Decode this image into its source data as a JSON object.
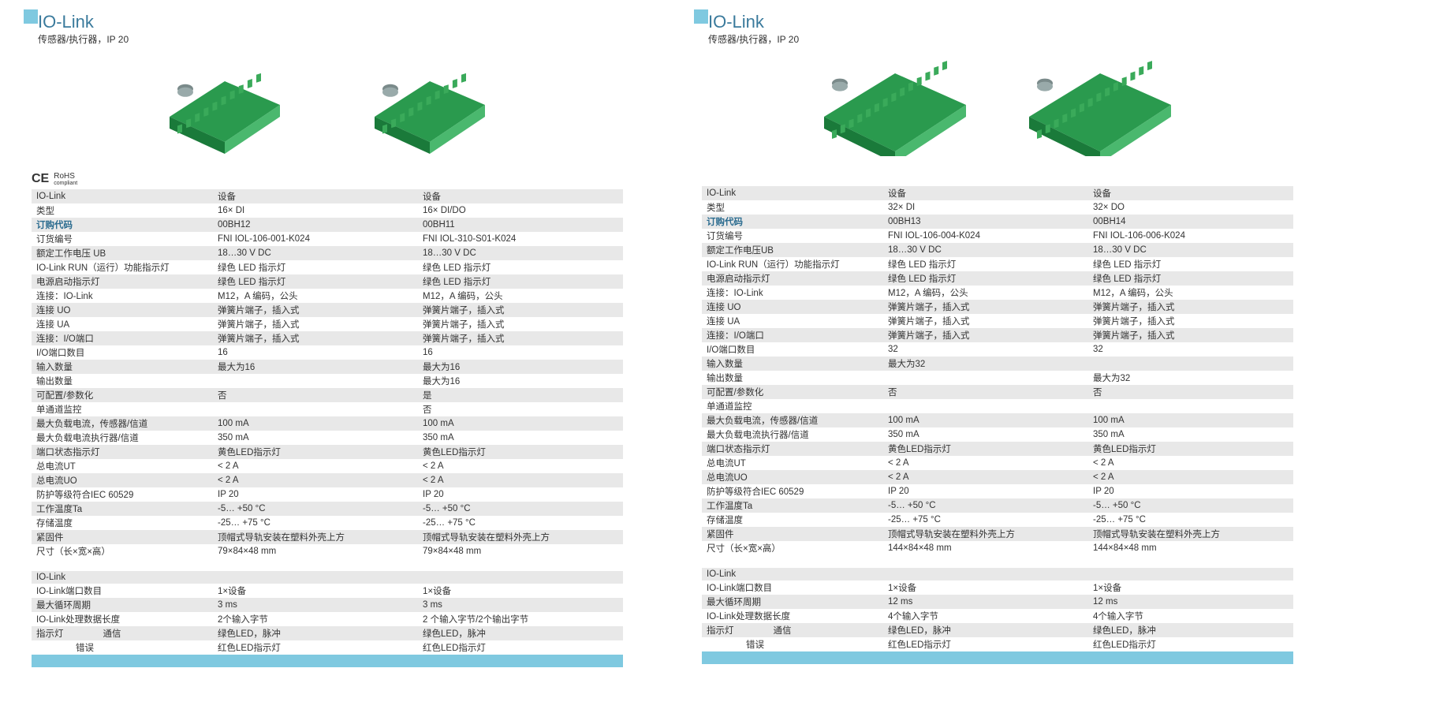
{
  "panels": [
    {
      "title": "IO-Link",
      "subtitle": "传感器/执行器，IP 20",
      "show_cert": true,
      "images": [
        "a",
        "b"
      ],
      "col_headers": [
        "设备",
        "设备"
      ],
      "rows": [
        {
          "label": "IO-Link",
          "c1": "设备",
          "c2": "设备",
          "cls": "row-grey",
          "header": true
        },
        {
          "label": "类型",
          "c1": "16× DI",
          "c2": "16× DI/DO",
          "cls": "row-white"
        },
        {
          "label": "订购代码",
          "c1": "00BH12",
          "c2": "00BH11",
          "cls": "row-grey row-ordercode"
        },
        {
          "label": "订货编号",
          "c1": "FNI IOL-106-001-K024",
          "c2": "FNI IOL-310-S01-K024",
          "cls": "row-white"
        },
        {
          "label": "额定工作电压 UB",
          "c1": "18…30 V DC",
          "c2": "18…30 V DC",
          "cls": "row-grey"
        },
        {
          "label": "IO-Link RUN（运行）功能指示灯",
          "c1": "绿色 LED 指示灯",
          "c2": "绿色 LED 指示灯",
          "cls": "row-white"
        },
        {
          "label": "电源启动指示灯",
          "c1": "绿色 LED 指示灯",
          "c2": "绿色 LED 指示灯",
          "cls": "row-grey"
        },
        {
          "label": "连接：IO-Link",
          "c1": "M12，A 编码，公头",
          "c2": "M12，A 编码，公头",
          "cls": "row-white"
        },
        {
          "label": "连接 UO",
          "c1": "弹簧片端子，插入式",
          "c2": "弹簧片端子，插入式",
          "cls": "row-grey"
        },
        {
          "label": "连接 UA",
          "c1": "弹簧片端子，插入式",
          "c2": "弹簧片端子，插入式",
          "cls": "row-white"
        },
        {
          "label": "连接：I/O端口",
          "c1": "弹簧片端子，插入式",
          "c2": "弹簧片端子，插入式",
          "cls": "row-grey"
        },
        {
          "label": "I/O端口数目",
          "c1": "16",
          "c2": "16",
          "cls": "row-white"
        },
        {
          "label": "输入数量",
          "c1": "最大为16",
          "c2": "最大为16",
          "cls": "row-grey"
        },
        {
          "label": "输出数量",
          "c1": "",
          "c2": "最大为16",
          "cls": "row-white"
        },
        {
          "label": "可配置/参数化",
          "c1": "否",
          "c2": "是",
          "cls": "row-grey"
        },
        {
          "label": "单通道监控",
          "c1": "",
          "c2": "否",
          "cls": "row-white"
        },
        {
          "label": "最大负载电流，传感器/信道",
          "c1": "100 mA",
          "c2": "100 mA",
          "cls": "row-grey"
        },
        {
          "label": "最大负载电流执行器/信道",
          "c1": "350 mA",
          "c2": "350 mA",
          "cls": "row-white"
        },
        {
          "label": "端口状态指示灯",
          "c1": "黄色LED指示灯",
          "c2": "黄色LED指示灯",
          "cls": "row-grey"
        },
        {
          "label": "总电流UT",
          "c1": "< 2 A",
          "c2": "< 2 A",
          "cls": "row-white"
        },
        {
          "label": "总电流UO",
          "c1": "< 2 A",
          "c2": "< 2 A",
          "cls": "row-grey"
        },
        {
          "label": "防护等级符合IEC 60529",
          "c1": "IP 20",
          "c2": "IP 20",
          "cls": "row-white"
        },
        {
          "label": "工作温度Ta",
          "c1": "-5… +50 °C",
          "c2": "-5… +50 °C",
          "cls": "row-grey"
        },
        {
          "label": "存储温度",
          "c1": "-25… +75 °C",
          "c2": "-25… +75 °C",
          "cls": "row-white"
        },
        {
          "label": "紧固件",
          "c1": "顶帽式导轨安装在塑料外壳上方",
          "c2": "顶帽式导轨安装在塑料外壳上方",
          "cls": "row-grey"
        },
        {
          "label": "尺寸（长×宽×高）",
          "c1": "79×84×48 mm",
          "c2": "79×84×48 mm",
          "cls": "row-white"
        }
      ],
      "rows2": [
        {
          "label": "IO-Link",
          "c1": "",
          "c2": "",
          "cls": "row-grey"
        },
        {
          "label": "IO-Link端口数目",
          "c1": "1×设备",
          "c2": "1×设备",
          "cls": "row-white"
        },
        {
          "label": "最大循环周期",
          "c1": "3 ms",
          "c2": "3 ms",
          "cls": "row-grey"
        },
        {
          "label": "IO-Link处理数据长度",
          "c1": "2个输入字节",
          "c2": "2 个输入字节/2个输出字节",
          "cls": "row-white"
        },
        {
          "label": "指示灯",
          "sublabel": "通信",
          "c1": "绿色LED，脉冲",
          "c2": "绿色LED，脉冲",
          "cls": "row-grey",
          "indent": true
        },
        {
          "label": "",
          "sublabel": "错误",
          "c1": "红色LED指示灯",
          "c2": "红色LED指示灯",
          "cls": "row-white",
          "indent": true
        }
      ]
    },
    {
      "title": "IO-Link",
      "subtitle": "传感器/执行器，IP 20",
      "show_cert": false,
      "images": [
        "c",
        "d"
      ],
      "rows": [
        {
          "label": "IO-Link",
          "c1": "设备",
          "c2": "设备",
          "cls": "row-grey",
          "header": true
        },
        {
          "label": "类型",
          "c1": "32× DI",
          "c2": "32× DO",
          "cls": "row-white"
        },
        {
          "label": "订购代码",
          "c1": "00BH13",
          "c2": "00BH14",
          "cls": "row-grey row-ordercode"
        },
        {
          "label": "订货编号",
          "c1": "FNI IOL-106-004-K024",
          "c2": "FNI IOL-106-006-K024",
          "cls": "row-white"
        },
        {
          "label": "额定工作电压UB",
          "c1": "18…30 V DC",
          "c2": "18…30 V DC",
          "cls": "row-grey"
        },
        {
          "label": "IO-Link RUN（运行）功能指示灯",
          "c1": "绿色 LED 指示灯",
          "c2": "绿色 LED 指示灯",
          "cls": "row-white"
        },
        {
          "label": "电源启动指示灯",
          "c1": "绿色 LED 指示灯",
          "c2": "绿色 LED 指示灯",
          "cls": "row-grey"
        },
        {
          "label": "连接：IO-Link",
          "c1": "M12，A 编码，公头",
          "c2": "M12，A 编码，公头",
          "cls": "row-white"
        },
        {
          "label": "连接 UO",
          "c1": "弹簧片端子，插入式",
          "c2": "弹簧片端子，插入式",
          "cls": "row-grey"
        },
        {
          "label": "连接 UA",
          "c1": "弹簧片端子，插入式",
          "c2": "弹簧片端子，插入式",
          "cls": "row-white"
        },
        {
          "label": "连接：I/O端口",
          "c1": "弹簧片端子，插入式",
          "c2": "弹簧片端子，插入式",
          "cls": "row-grey"
        },
        {
          "label": "I/O端口数目",
          "c1": "32",
          "c2": "32",
          "cls": "row-white"
        },
        {
          "label": "输入数量",
          "c1": "最大为32",
          "c2": "",
          "cls": "row-grey"
        },
        {
          "label": "输出数量",
          "c1": "",
          "c2": "最大为32",
          "cls": "row-white"
        },
        {
          "label": "可配置/参数化",
          "c1": "否",
          "c2": "否",
          "cls": "row-grey"
        },
        {
          "label": "单通道监控",
          "c1": "",
          "c2": "",
          "cls": "row-white"
        },
        {
          "label": "最大负载电流，传感器/信道",
          "c1": "100 mA",
          "c2": "100 mA",
          "cls": "row-grey"
        },
        {
          "label": "最大负载电流执行器/信道",
          "c1": "350 mA",
          "c2": "350 mA",
          "cls": "row-white"
        },
        {
          "label": "端口状态指示灯",
          "c1": "黄色LED指示灯",
          "c2": "黄色LED指示灯",
          "cls": "row-grey"
        },
        {
          "label": "总电流UT",
          "c1": "< 2 A",
          "c2": "< 2 A",
          "cls": "row-white"
        },
        {
          "label": "总电流UO",
          "c1": "< 2 A",
          "c2": "< 2 A",
          "cls": "row-grey"
        },
        {
          "label": "防护等级符合IEC 60529",
          "c1": "IP 20",
          "c2": "IP 20",
          "cls": "row-white"
        },
        {
          "label": "工作温度Ta",
          "c1": "-5… +50 °C",
          "c2": "-5… +50 °C",
          "cls": "row-grey"
        },
        {
          "label": "存储温度",
          "c1": "-25… +75 °C",
          "c2": "-25… +75 °C",
          "cls": "row-white"
        },
        {
          "label": "紧固件",
          "c1": "顶帽式导轨安装在塑料外壳上方",
          "c2": "顶帽式导轨安装在塑料外壳上方",
          "cls": "row-grey"
        },
        {
          "label": "尺寸（长×宽×高）",
          "c1": "144×84×48 mm",
          "c2": "144×84×48 mm",
          "cls": "row-white"
        }
      ],
      "rows2": [
        {
          "label": "IO-Link",
          "c1": "",
          "c2": "",
          "cls": "row-grey"
        },
        {
          "label": "IO-Link端口数目",
          "c1": "1×设备",
          "c2": "1×设备",
          "cls": "row-white"
        },
        {
          "label": "最大循环周期",
          "c1": "12 ms",
          "c2": "12 ms",
          "cls": "row-grey"
        },
        {
          "label": "IO-Link处理数据长度",
          "c1": "4个输入字节",
          "c2": "4个输入字节",
          "cls": "row-white"
        },
        {
          "label": "指示灯",
          "sublabel": "通信",
          "c1": "绿色LED，脉冲",
          "c2": "绿色LED，脉冲",
          "cls": "row-grey",
          "indent": true
        },
        {
          "label": "",
          "sublabel": "错误",
          "c1": "红色LED指示灯",
          "c2": "红色LED指示灯",
          "cls": "row-white",
          "indent": true
        }
      ]
    }
  ],
  "cert": {
    "ce": "CE",
    "rohs": "RoHS",
    "rohs_sub": "compliant"
  },
  "product_svg": {
    "colors": {
      "board_top": "#1a7a3a",
      "board_side": "#2a9a4e",
      "board_light": "#4ab86e",
      "terminal": "#3aaa5a",
      "connector": "#7a8a8a"
    }
  }
}
